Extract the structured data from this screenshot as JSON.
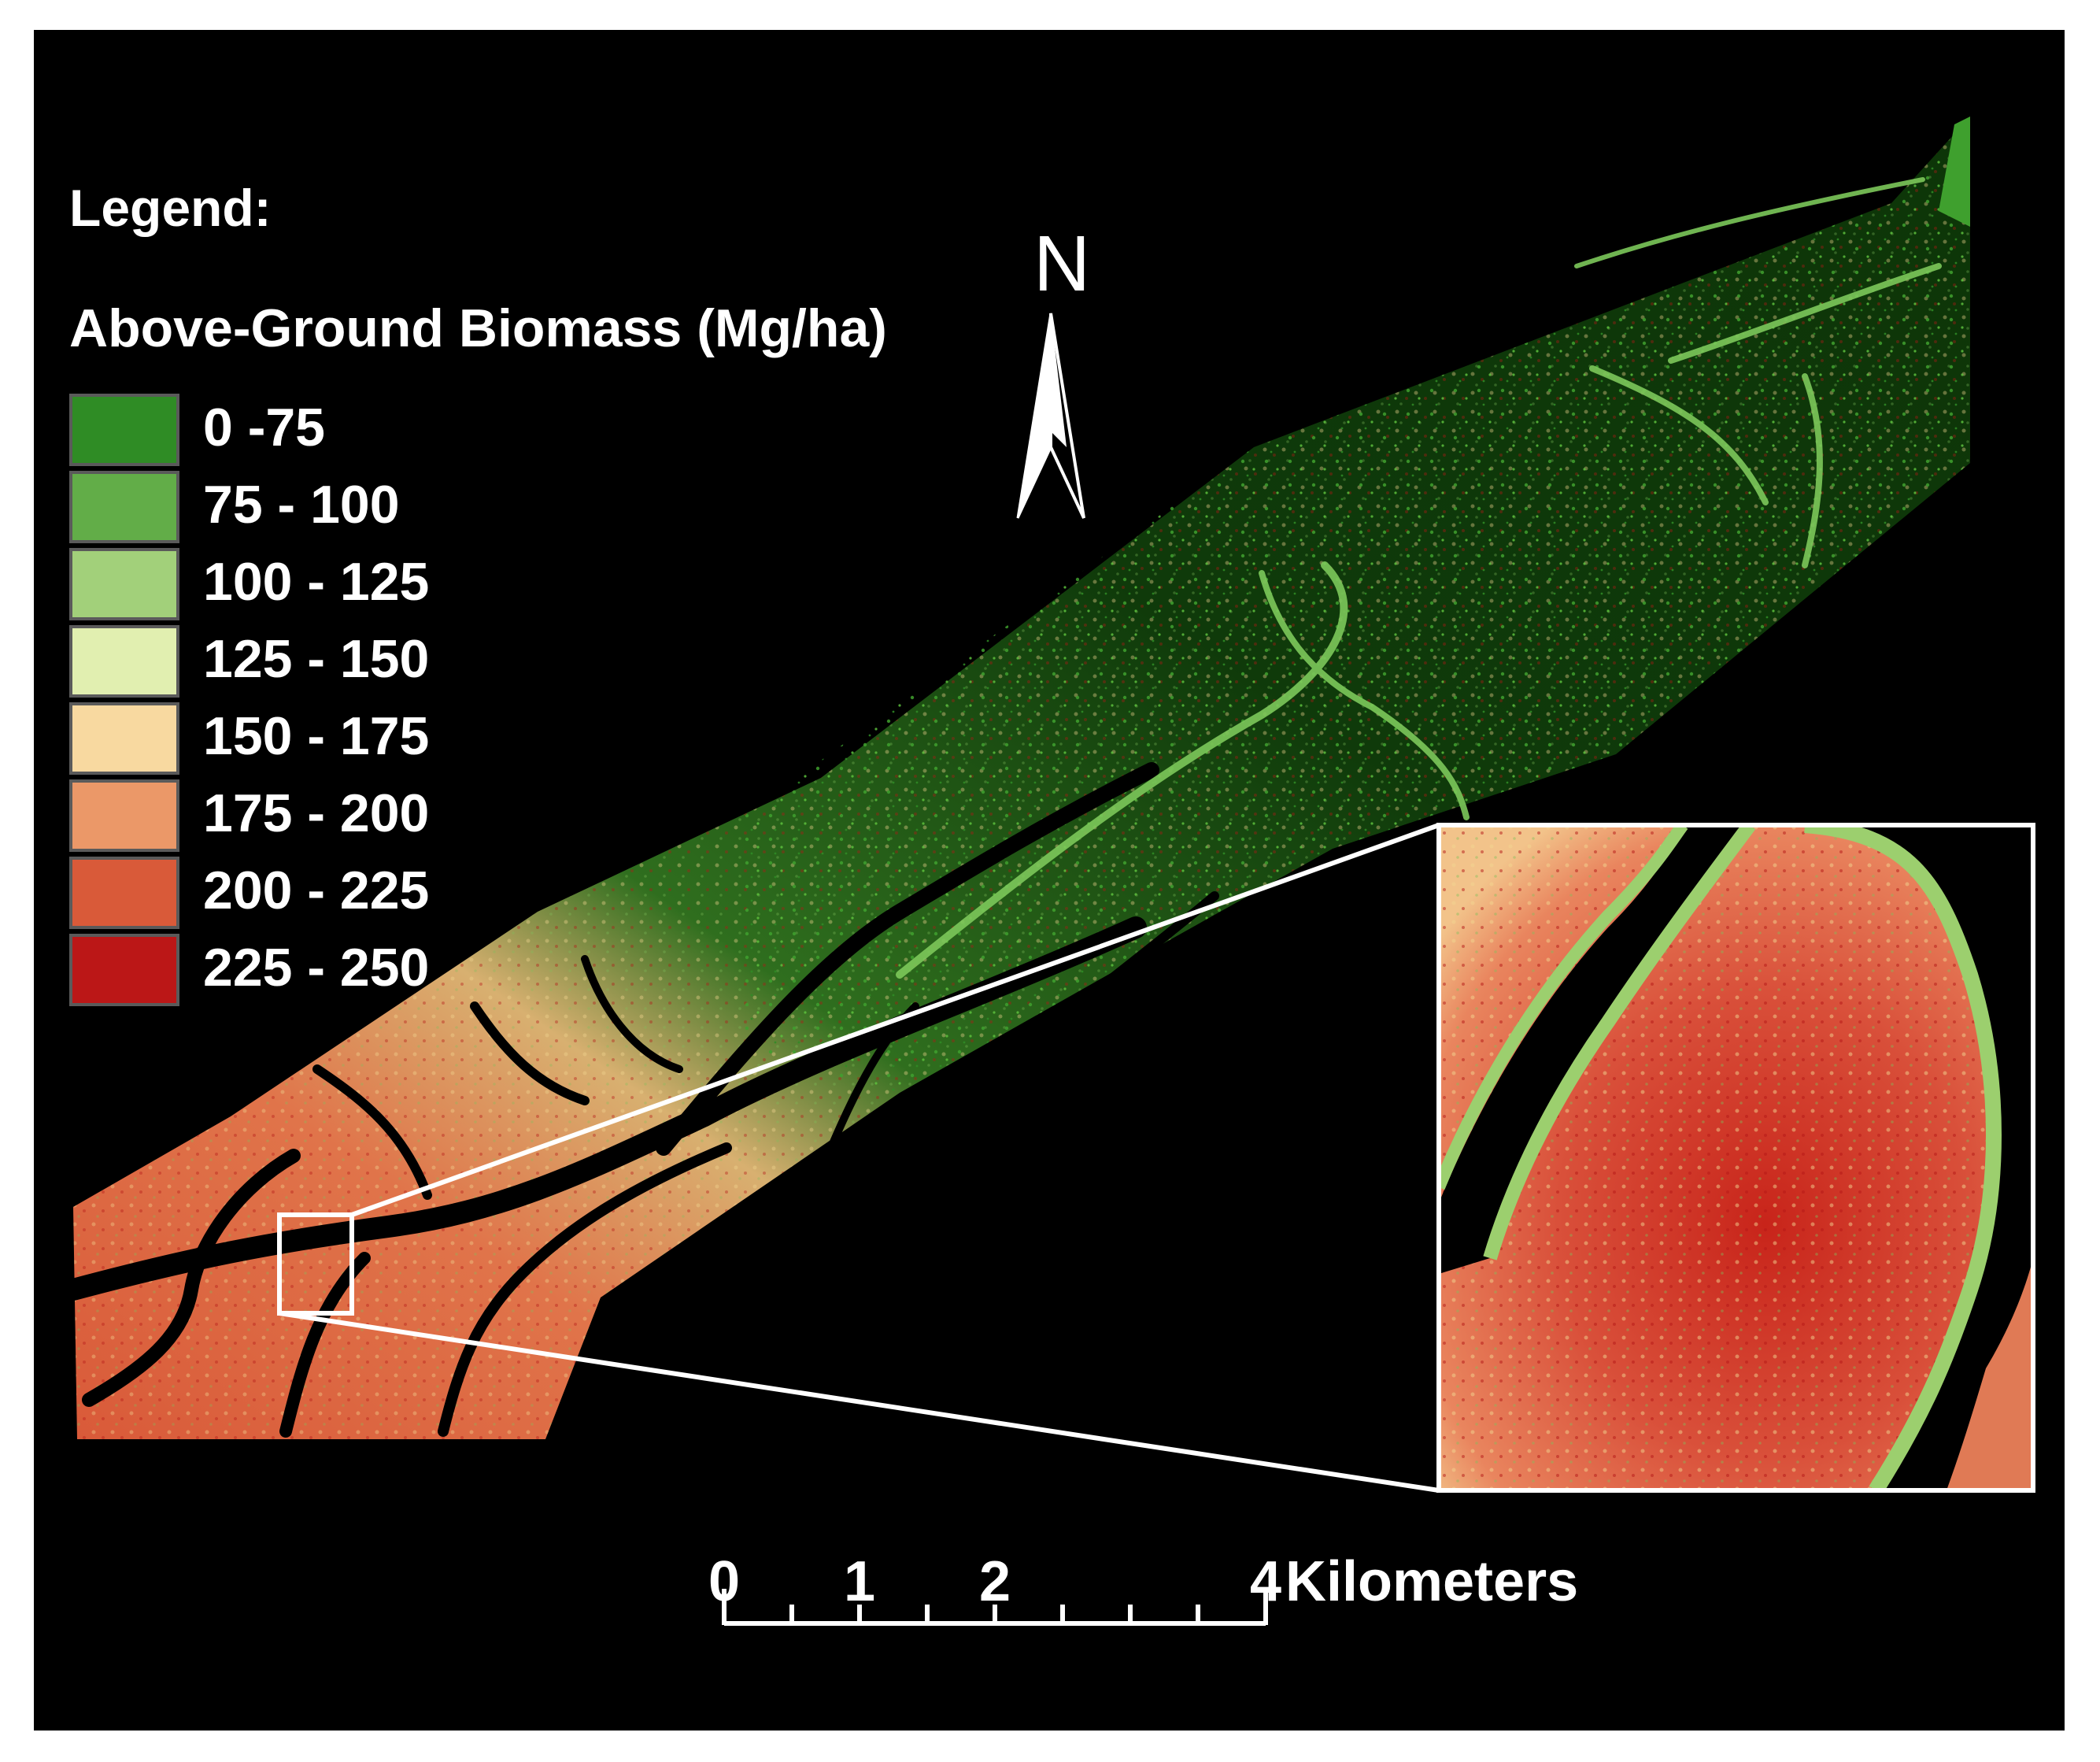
{
  "legend": {
    "title": "Legend:",
    "subtitle": "Above-Ground Biomass (Mg/ha)",
    "items": [
      {
        "label": "0 -75",
        "color": "#2f8c25"
      },
      {
        "label": "75 - 100",
        "color": "#62ad48"
      },
      {
        "label": "100 - 125",
        "color": "#a2d07a"
      },
      {
        "label": "125 - 150",
        "color": "#e1efb0"
      },
      {
        "label": "150 - 175",
        "color": "#f8d9a0"
      },
      {
        "label": "175 - 200",
        "color": "#eb9868"
      },
      {
        "label": "200 - 225",
        "color": "#d95a39"
      },
      {
        "label": "225 - 250",
        "color": "#bb1717"
      }
    ]
  },
  "north_arrow": {
    "letter": "N"
  },
  "scale_bar": {
    "labels": [
      "0",
      "1",
      "2",
      "4"
    ],
    "values_km": [
      0,
      1,
      2,
      4
    ],
    "unit": "Kilometers"
  },
  "colors": {
    "background": "#000000",
    "frame": "#ffffff",
    "callout": "#ffffff"
  }
}
